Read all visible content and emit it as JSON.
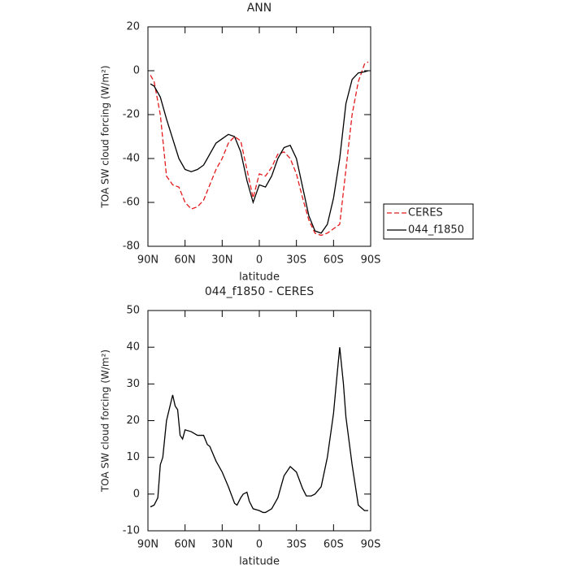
{
  "chart_data": [
    {
      "type": "line",
      "title": "ANN",
      "xlabel": "latitude",
      "ylabel": "TOA SW cloud forcing (W/m²)",
      "x": [
        88,
        85,
        80,
        75,
        70,
        65,
        60,
        55,
        50,
        45,
        40,
        35,
        30,
        25,
        20,
        15,
        10,
        5,
        0,
        -5,
        -10,
        -15,
        -20,
        -25,
        -30,
        -35,
        -40,
        -45,
        -50,
        -55,
        -60,
        -65,
        -70,
        -75,
        -80,
        -85,
        -88
      ],
      "series": [
        {
          "name": "CERES",
          "color": "#e41a1c",
          "linestyle": "dashed",
          "values": [
            -2,
            -5,
            -20,
            -48,
            -52,
            -53,
            -60,
            -63,
            -62,
            -59,
            -52,
            -45,
            -40,
            -33,
            -30,
            -32,
            -45,
            -58,
            -47,
            -48,
            -44,
            -38,
            -37,
            -40,
            -47,
            -58,
            -68,
            -74,
            -75,
            -74,
            -72,
            -70,
            -45,
            -20,
            -5,
            3,
            4
          ]
        },
        {
          "name": "044_f1850",
          "color": "#000000",
          "linestyle": "solid",
          "values": [
            -6,
            -7,
            -12,
            -22,
            -31,
            -40,
            -45,
            -46,
            -45,
            -43,
            -38,
            -33,
            -31,
            -29,
            -30,
            -37,
            -50,
            -60,
            -52,
            -53,
            -48,
            -40,
            -35,
            -34,
            -40,
            -53,
            -66,
            -73,
            -74,
            -70,
            -58,
            -40,
            -15,
            -4,
            -1,
            -0.5,
            0
          ]
        }
      ],
      "xlim": [
        90,
        -90
      ],
      "xticks": [
        {
          "value": 90,
          "label": "90N"
        },
        {
          "value": 60,
          "label": "60N"
        },
        {
          "value": 30,
          "label": "30N"
        },
        0,
        {
          "value": -30,
          "label": "30S"
        },
        {
          "value": -60,
          "label": "60S"
        },
        {
          "value": -90,
          "label": "90S"
        }
      ],
      "ylim": [
        -80,
        20
      ],
      "yticks": [
        20,
        0,
        -20,
        -40,
        -60,
        -80
      ],
      "legend": "right"
    },
    {
      "type": "line",
      "title": "044_f1850 - CERES",
      "xlabel": "latitude",
      "ylabel": "TOA SW cloud forcing (W/m²)",
      "x": [
        88,
        85,
        82,
        80,
        78,
        75,
        70,
        68,
        66,
        64,
        62,
        60,
        55,
        50,
        45,
        42,
        40,
        35,
        30,
        25,
        20,
        18,
        15,
        13,
        10,
        8,
        5,
        0,
        -3,
        -5,
        -10,
        -15,
        -20,
        -25,
        -30,
        -35,
        -38,
        -42,
        -45,
        -50,
        -55,
        -60,
        -63,
        -65,
        -68,
        -70,
        -75,
        -80,
        -85,
        -88
      ],
      "series": [
        {
          "color": "#000000",
          "linestyle": "solid",
          "values": [
            -3.5,
            -3,
            -1,
            8,
            10,
            20,
            27,
            24,
            23,
            16,
            15,
            17.5,
            17,
            16,
            16,
            13.5,
            13,
            9,
            6,
            2,
            -2.5,
            -3,
            -1,
            0,
            0.5,
            -2,
            -4,
            -4.5,
            -5,
            -5,
            -4,
            -1,
            5,
            7.5,
            6,
            1.5,
            -0.5,
            -0.5,
            0,
            2,
            10,
            22,
            33,
            40,
            30,
            21,
            8,
            -3,
            -4.5,
            -4.5
          ]
        }
      ],
      "xlim": [
        90,
        -90
      ],
      "xticks": [
        {
          "value": 90,
          "label": "90N"
        },
        {
          "value": 60,
          "label": "60N"
        },
        {
          "value": 30,
          "label": "30N"
        },
        0,
        {
          "value": -30,
          "label": "30S"
        },
        {
          "value": -60,
          "label": "60S"
        },
        {
          "value": -90,
          "label": "90S"
        }
      ],
      "ylim": [
        -10,
        50
      ],
      "yticks": [
        50,
        40,
        30,
        20,
        10,
        0,
        -10
      ]
    }
  ]
}
